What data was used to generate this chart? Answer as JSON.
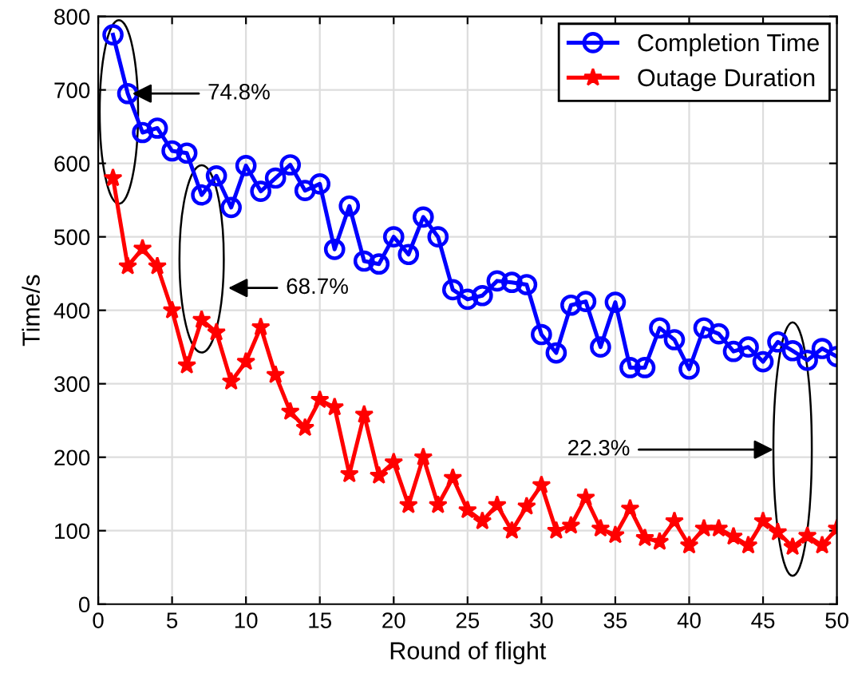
{
  "chart_data": {
    "type": "line",
    "xlabel": "Round of flight",
    "ylabel": "Time/s",
    "x": [
      1,
      2,
      3,
      4,
      5,
      6,
      7,
      8,
      9,
      10,
      11,
      12,
      13,
      14,
      15,
      16,
      17,
      18,
      19,
      20,
      21,
      22,
      23,
      24,
      25,
      26,
      27,
      28,
      29,
      30,
      31,
      32,
      33,
      34,
      35,
      36,
      37,
      38,
      39,
      40,
      41,
      42,
      43,
      44,
      45,
      46,
      47,
      48,
      49,
      50
    ],
    "series": [
      {
        "name": "Completion Time",
        "color": "#0000ff",
        "marker": "circle",
        "values": [
          775,
          695,
          642,
          648,
          617,
          614,
          557,
          583,
          540,
          597,
          562,
          580,
          598,
          563,
          572,
          483,
          542,
          467,
          463,
          500,
          476,
          527,
          500,
          428,
          415,
          420,
          440,
          438,
          435,
          367,
          342,
          407,
          412,
          350,
          411,
          322,
          322,
          376,
          360,
          320,
          376,
          368,
          344,
          350,
          330,
          357,
          345,
          332,
          348,
          337
        ]
      },
      {
        "name": "Outage Duration",
        "color": "#ff0000",
        "marker": "star",
        "values": [
          580,
          460,
          484,
          460,
          400,
          325,
          387,
          370,
          303,
          330,
          377,
          312,
          262,
          240,
          278,
          268,
          177,
          258,
          175,
          193,
          135,
          200,
          135,
          172,
          128,
          113,
          135,
          100,
          133,
          162,
          100,
          107,
          145,
          103,
          94,
          130,
          90,
          85,
          113,
          80,
          103,
          103,
          92,
          80,
          113,
          98,
          78,
          93,
          80,
          103
        ]
      }
    ],
    "annotations": [
      {
        "text": "74.8%",
        "x": 2,
        "y": 695
      },
      "68.7%",
      "22.3%"
    ],
    "xlim": [
      0,
      50
    ],
    "xticks": [
      0,
      5,
      10,
      15,
      20,
      25,
      30,
      35,
      40,
      45,
      50
    ],
    "ylim": [
      0,
      800
    ],
    "yticks": [
      0,
      100,
      200,
      300,
      400,
      500,
      600,
      700,
      800
    ],
    "grid": true,
    "legend": "top right",
    "line_style": "solid"
  }
}
